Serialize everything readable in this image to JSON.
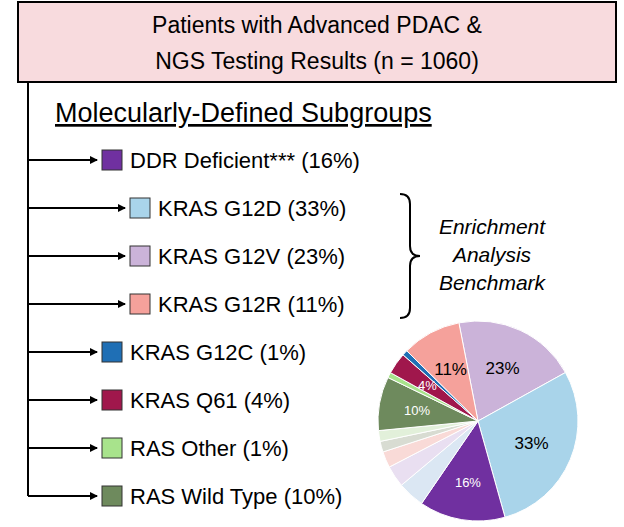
{
  "header": {
    "title": [
      "Patients with Advanced PDAC &",
      "NGS Testing Results (n = 1060)"
    ]
  },
  "subtitle": "Molecularly-Defined Subgroups",
  "subgroups": [
    {
      "label": "DDR Deficient*** (16%)",
      "color": "#7030a0",
      "benchmark": false
    },
    {
      "label": "KRAS G12D (33%)",
      "color": "#a9d4ea",
      "benchmark": true
    },
    {
      "label": "KRAS G12V (23%)",
      "color": "#cbb3d9",
      "benchmark": true
    },
    {
      "label": "KRAS G12R (11%)",
      "color": "#f5a19b",
      "benchmark": true
    },
    {
      "label": "KRAS G12C (1%)",
      "color": "#1f6fb5",
      "benchmark": false
    },
    {
      "label": "KRAS Q61 (4%)",
      "color": "#a0174c",
      "benchmark": false
    },
    {
      "label": "RAS Other (1%)",
      "color": "#a8e38c",
      "benchmark": false
    },
    {
      "label": "RAS Wild Type (10%)",
      "color": "#6e8a5d",
      "benchmark": false
    }
  ],
  "bracket_label": [
    "Enrichment",
    "Analysis",
    "Benchmark"
  ],
  "chart_data": {
    "type": "pie",
    "values": [
      23,
      33,
      16,
      5,
      4,
      3,
      2,
      2,
      10,
      1,
      4,
      1,
      11
    ],
    "colors": [
      "#cbb3d9",
      "#a9d4ea",
      "#7030a0",
      "#dbe7f3",
      "#e9dff1",
      "#f9dad7",
      "#d8dcd2",
      "#e2f0da",
      "#6e8a5d",
      "#a8e38c",
      "#a0174c",
      "#1f6fb5",
      "#f5a19b"
    ],
    "value_labels": [
      "23%",
      "33%",
      "16%",
      null,
      null,
      null,
      null,
      null,
      "10%",
      null,
      "4%",
      null,
      "11%"
    ],
    "data_labels": true
  }
}
